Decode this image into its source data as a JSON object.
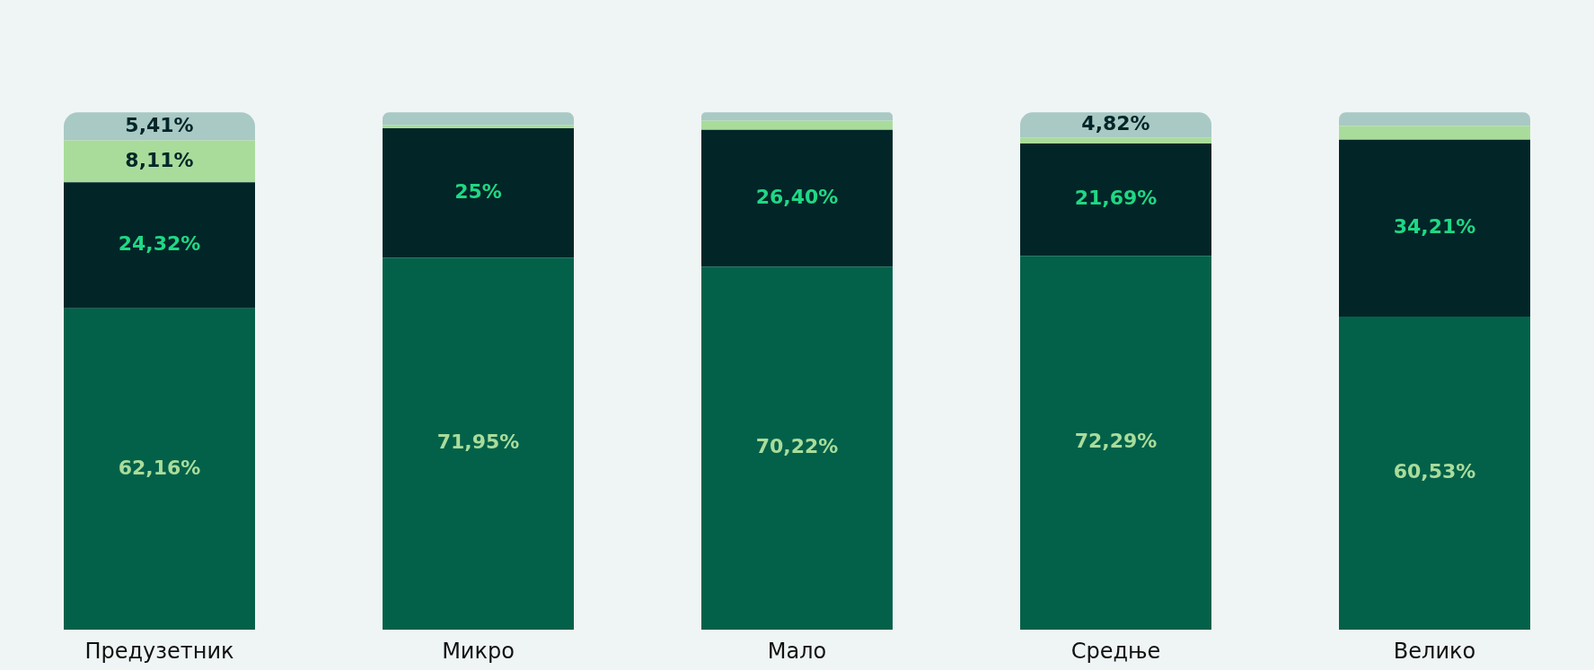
{
  "chart_data": {
    "type": "bar",
    "stacked": true,
    "categories": [
      "Предузетник",
      "Микро",
      "Мало",
      "Средње",
      "Велико"
    ],
    "series": [
      {
        "color": "#03614a",
        "values": [
          62.16,
          71.95,
          70.22,
          72.29,
          60.53
        ],
        "value_labels": [
          "62,16%",
          "71,95%",
          "70,22%",
          "72,29%",
          "60,53%"
        ]
      },
      {
        "color": "#022628",
        "values": [
          24.32,
          25,
          26.4,
          21.69,
          34.21
        ],
        "value_labels": [
          "24,32%",
          "25%",
          "26,40%",
          "21,69%",
          "34,21%"
        ]
      },
      {
        "color": "#a9dc9b",
        "values": [
          8.11,
          0.61,
          1.8,
          1.2,
          2.63
        ],
        "value_labels": [
          "8,11%",
          null,
          null,
          null,
          null
        ]
      },
      {
        "color": "#a9c9c5",
        "values": [
          5.41,
          2.44,
          1.58,
          4.82,
          2.63
        ],
        "value_labels": [
          "5,41%",
          null,
          null,
          "4,82%",
          null
        ]
      }
    ],
    "grid": false,
    "legend": false
  }
}
